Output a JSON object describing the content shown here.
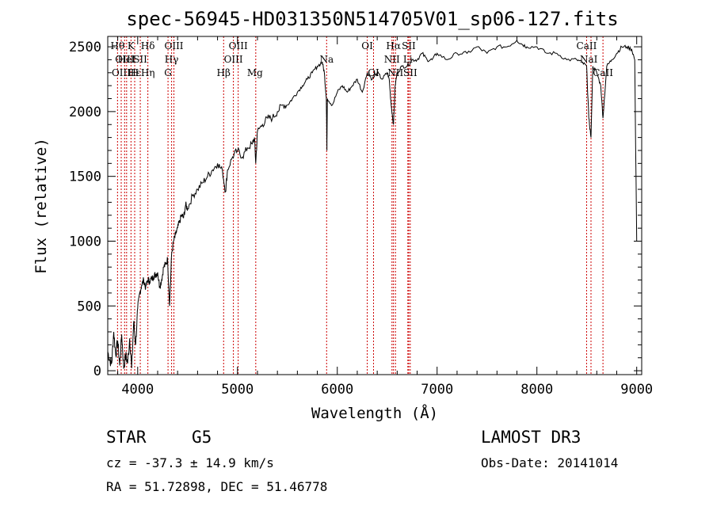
{
  "chart_data": {
    "type": "line",
    "title": "spec-56945-HD031350N514705V01_sp06-127.fits",
    "xlabel": "Wavelength (Å)",
    "ylabel": "Flux (relative)",
    "xlim": [
      3700,
      9050
    ],
    "ylim": [
      -30,
      2580
    ],
    "xticks": [
      4000,
      5000,
      6000,
      7000,
      8000,
      9000
    ],
    "xtick_labels": [
      "4000",
      "5000",
      "6000",
      "7000",
      "8000",
      "9000"
    ],
    "yticks": [
      0,
      500,
      1000,
      1500,
      2000,
      2500
    ],
    "ytick_labels": [
      "0",
      "500",
      "1000",
      "1500",
      "2000",
      "2500"
    ],
    "grid": false,
    "series": [
      {
        "color": "#000000",
        "x": [
          3700,
          3720,
          3740,
          3760,
          3780,
          3800,
          3820,
          3840,
          3860,
          3880,
          3900,
          3920,
          3940,
          3960,
          3980,
          4000,
          4020,
          4040,
          4060,
          4080,
          4100,
          4120,
          4140,
          4160,
          4180,
          4200,
          4220,
          4240,
          4260,
          4280,
          4300,
          4320,
          4340,
          4360,
          4380,
          4400,
          4420,
          4440,
          4460,
          4480,
          4500,
          4550,
          4600,
          4650,
          4700,
          4750,
          4800,
          4850,
          4880,
          4900,
          4950,
          5000,
          5050,
          5100,
          5150,
          5170,
          5183,
          5200,
          5250,
          5300,
          5350,
          5400,
          5450,
          5500,
          5550,
          5600,
          5650,
          5700,
          5750,
          5800,
          5850,
          5870,
          5890,
          5896,
          5900,
          5950,
          6000,
          6050,
          6100,
          6150,
          6200,
          6250,
          6300,
          6350,
          6400,
          6450,
          6500,
          6520,
          6540,
          6563,
          6580,
          6600,
          6650,
          6700,
          6750,
          6800,
          6850,
          6900,
          6950,
          7000,
          7100,
          7200,
          7300,
          7400,
          7500,
          7600,
          7700,
          7800,
          7850,
          7900,
          8000,
          8100,
          8200,
          8300,
          8400,
          8450,
          8498,
          8520,
          8542,
          8560,
          8600,
          8640,
          8662,
          8700,
          8750,
          8800,
          8850,
          8900,
          8950,
          8980,
          9000
        ],
        "y": [
          150,
          80,
          60,
          300,
          120,
          230,
          40,
          280,
          20,
          120,
          60,
          250,
          20,
          380,
          200,
          480,
          600,
          660,
          700,
          640,
          700,
          690,
          710,
          730,
          740,
          760,
          650,
          700,
          800,
          820,
          860,
          500,
          900,
          1000,
          1050,
          1100,
          1150,
          1200,
          1180,
          1280,
          1250,
          1350,
          1400,
          1450,
          1500,
          1550,
          1600,
          1540,
          1380,
          1550,
          1650,
          1700,
          1650,
          1720,
          1750,
          1800,
          1600,
          1850,
          1900,
          1950,
          1950,
          2000,
          2050,
          2050,
          2100,
          2150,
          2200,
          2250,
          2300,
          2350,
          2380,
          2300,
          2100,
          1700,
          2100,
          2050,
          2150,
          2200,
          2150,
          2200,
          2250,
          2150,
          2300,
          2250,
          2300,
          2250,
          2300,
          2250,
          2050,
          1900,
          2200,
          2300,
          2350,
          2350,
          2400,
          2400,
          2450,
          2400,
          2400,
          2450,
          2400,
          2450,
          2450,
          2500,
          2450,
          2500,
          2500,
          2550,
          2520,
          2500,
          2500,
          2450,
          2450,
          2400,
          2400,
          2380,
          2350,
          1950,
          1800,
          2350,
          2300,
          2200,
          1950,
          2350,
          2400,
          2450,
          2500,
          2500,
          2480,
          2400,
          1000
        ]
      }
    ],
    "line_labels": [
      {
        "wl": 3798,
        "row": 1,
        "text": "Hθ"
      },
      {
        "wl": 3835,
        "row": 3,
        "text": "OIII"
      },
      {
        "wl": 3869,
        "row": 2,
        "text": "OIII"
      },
      {
        "wl": 3889,
        "row": 2,
        "text": "HeI"
      },
      {
        "wl": 3933,
        "row": 1,
        "text": "K"
      },
      {
        "wl": 3968,
        "row": 3,
        "text": "Hε"
      },
      {
        "wl": 3970,
        "row": 3,
        "text": "H"
      },
      {
        "wl": 4026,
        "row": 2,
        "text": "SII"
      },
      {
        "wl": 4102,
        "row": 1,
        "text": "Hδ"
      },
      {
        "wl": 4102,
        "row": 3,
        "text": "Hη"
      },
      {
        "wl": 4340,
        "row": 2,
        "text": "Hγ"
      },
      {
        "wl": 4304,
        "row": 3,
        "text": "G"
      },
      {
        "wl": 4363,
        "row": 1,
        "text": "OIII"
      },
      {
        "wl": 4861,
        "row": 3,
        "text": "Hβ"
      },
      {
        "wl": 4959,
        "row": 2,
        "text": "OIII"
      },
      {
        "wl": 5007,
        "row": 1,
        "text": "OIII"
      },
      {
        "wl": 5175,
        "row": 3,
        "text": "Mg"
      },
      {
        "wl": 5893,
        "row": 2,
        "text": "Na"
      },
      {
        "wl": 6300,
        "row": 1,
        "text": "OI"
      },
      {
        "wl": 6363,
        "row": 3,
        "text": "OI"
      },
      {
        "wl": 6548,
        "row": 2,
        "text": "NII"
      },
      {
        "wl": 6563,
        "row": 1,
        "text": "Hα"
      },
      {
        "wl": 6583,
        "row": 3,
        "text": "NII"
      },
      {
        "wl": 6707,
        "row": 2,
        "text": "Li"
      },
      {
        "wl": 6716,
        "row": 1,
        "text": "SII"
      },
      {
        "wl": 6731,
        "row": 3,
        "text": "SII"
      },
      {
        "wl": 8498,
        "row": 1,
        "text": "CaII"
      },
      {
        "wl": 8520,
        "row": 2,
        "text": "NaI"
      },
      {
        "wl": 8662,
        "row": 3,
        "text": "CaII"
      }
    ],
    "marker_lines": [
      3798,
      3835,
      3869,
      3889,
      3933,
      3970,
      4026,
      4102,
      4304,
      4340,
      4363,
      4861,
      4959,
      5007,
      5183,
      5893,
      6300,
      6363,
      6548,
      6563,
      6583,
      6707,
      6716,
      6731,
      8498,
      8542,
      8662
    ]
  },
  "info": {
    "object_type": "STAR",
    "subclass": "G5",
    "survey": "LAMOST DR3",
    "redshift": "cz = -37.3 ± 14.9 km/s",
    "obs_date": "Obs-Date: 20141014",
    "coords": "RA =  51.72898, DEC =  51.46778"
  }
}
